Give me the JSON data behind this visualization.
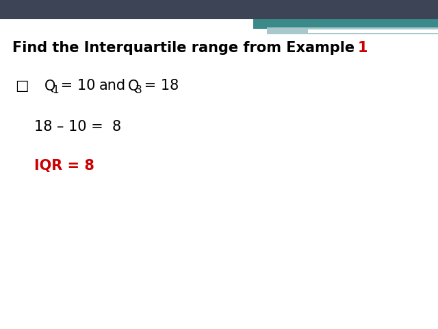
{
  "bg_color": "#ffffff",
  "header_dark_color": "#3d4456",
  "header_teal_color": "#3a8a8a",
  "header_light_color": "#a8c8cc",
  "title_black": "Find the Interquartile range from Example ",
  "title_red": "1",
  "bullet_symbol": "□",
  "q1_label": "Q",
  "q1_sub": "1",
  "q1_val": " = 10",
  "and_text": "and",
  "q3_label": "Q",
  "q3_sub": "3",
  "q3_val": " = 18",
  "calc_text": "18 – 10 =  8",
  "iqr_text": "IQR = 8",
  "title_fontsize": 15,
  "body_fontsize": 15,
  "iqr_fontsize": 15,
  "black_color": "#000000",
  "red_color": "#cc0000"
}
